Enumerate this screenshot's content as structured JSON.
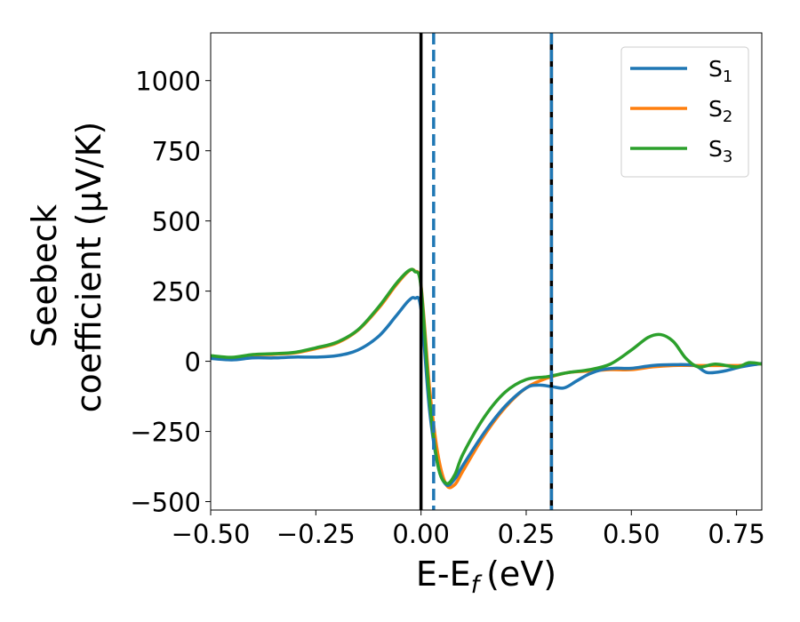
{
  "chart_data": {
    "type": "line",
    "xlabel": {
      "main": "E-E",
      "sub": "f",
      "unit": "(eV)"
    },
    "ylabel": {
      "line1": "Seebeck",
      "line2": "coefficient  (μV/K)"
    },
    "xlim": [
      -0.5,
      0.81
    ],
    "ylim": [
      -530,
      1170
    ],
    "xticks": [
      -0.5,
      -0.25,
      0.0,
      0.25,
      0.5,
      0.75
    ],
    "xtick_labels": [
      "−0.50",
      "−0.25",
      "0.00",
      "0.25",
      "0.50",
      "0.75"
    ],
    "yticks": [
      -500,
      -250,
      0,
      250,
      500,
      750,
      1000
    ],
    "ytick_labels": [
      "−500",
      "−250",
      "0",
      "250",
      "500",
      "750",
      "1000"
    ],
    "grid": false,
    "legend_position": "top-right",
    "vlines": [
      {
        "x": 0.0,
        "color": "#000000",
        "style": "solid"
      },
      {
        "x": 0.03,
        "color": "#1f77b4",
        "style": "dashed"
      },
      {
        "x": 0.31,
        "color": "#000000",
        "style": "solid"
      },
      {
        "x": 0.31,
        "color": "#1f77b4",
        "style": "dashed"
      }
    ],
    "series": [
      {
        "name": "S",
        "sub": "1",
        "color": "#1f77b4",
        "x": [
          -0.5,
          -0.45,
          -0.4,
          -0.35,
          -0.3,
          -0.25,
          -0.2,
          -0.15,
          -0.1,
          -0.06,
          -0.03,
          -0.015,
          0.0,
          0.02,
          0.04,
          0.06,
          0.08,
          0.1,
          0.15,
          0.2,
          0.25,
          0.28,
          0.31,
          0.34,
          0.37,
          0.4,
          0.43,
          0.46,
          0.5,
          0.55,
          0.6,
          0.65,
          0.68,
          0.72,
          0.76,
          0.8,
          0.81
        ],
        "y": [
          10,
          5,
          12,
          12,
          15,
          15,
          20,
          40,
          90,
          160,
          215,
          225,
          185,
          -170,
          -370,
          -440,
          -420,
          -370,
          -255,
          -160,
          -95,
          -85,
          -90,
          -95,
          -70,
          -45,
          -30,
          -25,
          -25,
          -15,
          -12,
          -15,
          -40,
          -35,
          -20,
          -10,
          -8
        ]
      },
      {
        "name": "S",
        "sub": "2",
        "color": "#ff7f0e",
        "x": [
          -0.5,
          -0.45,
          -0.4,
          -0.35,
          -0.3,
          -0.25,
          -0.2,
          -0.15,
          -0.1,
          -0.06,
          -0.03,
          -0.015,
          0.0,
          0.02,
          0.04,
          0.06,
          0.08,
          0.1,
          0.15,
          0.2,
          0.25,
          0.3,
          0.35,
          0.4,
          0.45,
          0.5,
          0.55,
          0.6,
          0.65,
          0.7,
          0.75,
          0.8,
          0.81
        ],
        "y": [
          18,
          12,
          22,
          25,
          30,
          45,
          65,
          110,
          190,
          270,
          320,
          322,
          270,
          -90,
          -330,
          -440,
          -440,
          -390,
          -265,
          -165,
          -95,
          -60,
          -40,
          -35,
          -30,
          -30,
          -20,
          -15,
          -15,
          -15,
          -15,
          -10,
          -8
        ]
      },
      {
        "name": "S",
        "sub": "3",
        "color": "#2ca02c",
        "x": [
          -0.5,
          -0.45,
          -0.4,
          -0.35,
          -0.3,
          -0.25,
          -0.2,
          -0.15,
          -0.1,
          -0.06,
          -0.03,
          -0.015,
          0.0,
          0.02,
          0.04,
          0.06,
          0.08,
          0.1,
          0.15,
          0.2,
          0.25,
          0.3,
          0.35,
          0.4,
          0.45,
          0.5,
          0.54,
          0.57,
          0.6,
          0.63,
          0.66,
          0.7,
          0.75,
          0.78,
          0.81
        ],
        "y": [
          20,
          14,
          24,
          27,
          32,
          48,
          68,
          112,
          195,
          275,
          322,
          320,
          265,
          -130,
          -370,
          -435,
          -405,
          -330,
          -200,
          -110,
          -65,
          -55,
          -40,
          -30,
          -10,
          40,
          85,
          95,
          70,
          10,
          -20,
          -10,
          -20,
          -5,
          -10
        ]
      }
    ]
  }
}
